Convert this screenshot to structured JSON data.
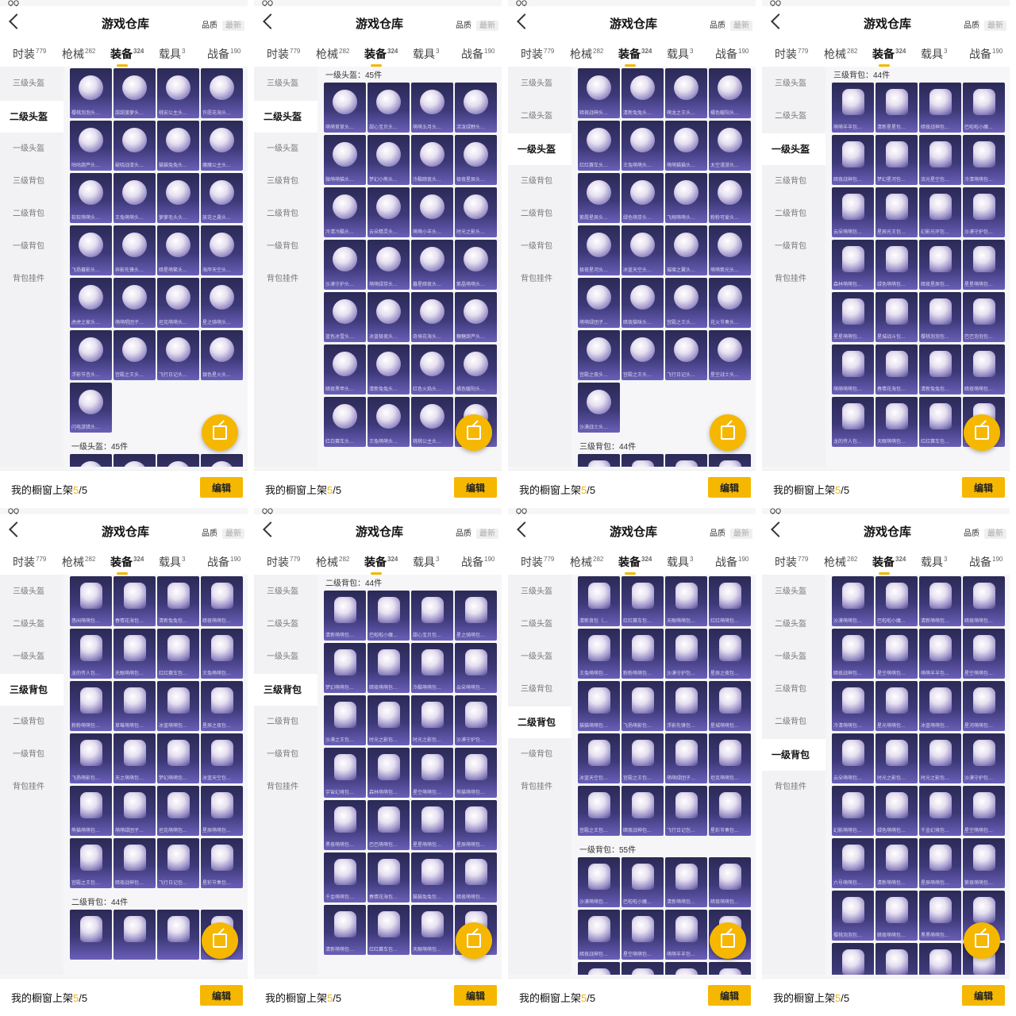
{
  "app": {
    "status": "QQ",
    "title": "游戏仓库",
    "sort_quality": "品质",
    "sort_newest": "最新"
  },
  "tabs": [
    {
      "label": "时装",
      "count": "779"
    },
    {
      "label": "枪械",
      "count": "282"
    },
    {
      "label": "装备",
      "count": "324"
    },
    {
      "label": "载具",
      "count": "3"
    },
    {
      "label": "战备",
      "count": "190"
    }
  ],
  "active_tab": 2,
  "sidebar": [
    "三级头盔",
    "二级头盔",
    "一级头盔",
    "三级背包",
    "二级背包",
    "一级背包",
    "背包挂件"
  ],
  "footer": {
    "label": "我的橱窗上架",
    "count": "5",
    "total": "/5",
    "edit": "编辑"
  },
  "panels": [
    {
      "active_side": 1,
      "sections": [
        {
          "label": "",
          "kind": "helmet",
          "items": [
            "樱桃泡泡头…",
            "甜甜菠萝头…",
            "桃安公主头…",
            "许愿花海头…",
            "咕咕葫芦头…",
            "破晓战漆头…",
            "猫猫兔兔头…",
            "魔魔公主头…",
            "软软萌萌头…",
            "王兔萌萌头…",
            "萝萝毛头头…",
            "放花之晨头…",
            "飞扬暮影头…",
            "奔影先锋头…",
            "暗星萌繁头…",
            "海岸天空头…",
            "虎虎之家头…",
            "萌萌唱团子…",
            "坦克萌萌头…",
            "星之骑萌头…",
            "浮影节杏头…",
            "宫殿之王头…",
            "飞行日记头…",
            "银色星火头…",
            "闪电游猎头…"
          ]
        },
        {
          "label": "一级头盔：45件",
          "kind": "helmet",
          "items": [
            "",
            "",
            "",
            ""
          ]
        }
      ]
    },
    {
      "active_side": 1,
      "sections": [
        {
          "label": "一级头盔：45件",
          "kind": "helmet",
          "items": [
            "萌萌草草头…",
            "甜心宝贝头…",
            "萌萌五月头…",
            "活泼绿野头…",
            "微萌萌猫头…",
            "梦幻小熊头…",
            "冷酷暗夜头…",
            "极夜星辰头…",
            "冷清冷酷头…",
            "云朵精灵头…",
            "萌萌小羊头…",
            "时光之影头…",
            "沙漠守护头…",
            "萌萌绿芽头…",
            "暮星暗夜头…",
            "紫晶萌萌头…",
            "蓝色冰雪头…",
            "冰蓝极夜头…",
            "奇境花海头…",
            "糖糖葫芦头…",
            "暗夜黑甲头…",
            "清新兔兔头…",
            "红色火焰头…",
            "橘色暖阳头…",
            "红白赛车头…",
            "王兔萌萌头…",
            "桃桃公主头…",
            ""
          ]
        }
      ]
    },
    {
      "active_side": 2,
      "sections": [
        {
          "label": "",
          "kind": "helmet",
          "items": [
            "暗夜战神头…",
            "清新兔兔头…",
            "萌龙之王头…",
            "橘色暖阳头…",
            "红红赛车头…",
            "王兔萌萌头…",
            "萌萌猫猫头…",
            "太空漫游头…",
            "紫霞星辰头…",
            "绿色萌芽头…",
            "飞翔萌萌头…",
            "粉粉可爱头…",
            "极夜星河头…",
            "冰蓝天空头…",
            "璀璨之翼头…",
            "萌萌紫光头…",
            "萌萌绿团子…",
            "暗夜猫咪头…",
            "宫殿之王头…",
            "花火节奏头…",
            "宫殿之夜头…",
            "宫殿之王头…",
            "飞行日记头…",
            "星空战士头…",
            "沙漠战士头…"
          ]
        },
        {
          "label": "三级背包：44件",
          "kind": "pack",
          "items": [
            "",
            "",
            "",
            ""
          ]
        }
      ]
    },
    {
      "active_side": 2,
      "sections": [
        {
          "label": "三级背包：44件",
          "kind": "pack",
          "items": [
            "萌萌羊羊包…",
            "清新星星包…",
            "暗夜战神包…",
            "巴啦啦小魔…",
            "暗夜战神包…",
            "梦幻星河包…",
            "流光星空包…",
            "冷清萌萌包…",
            "云朵萌萌包…",
            "星辰光王包…",
            "幻影光环包…",
            "沙漠守护包…",
            "森林萌萌包…",
            "绿色萌萌包…",
            "暗夜星辰包…",
            "星星萌萌包…",
            "星星萌萌包…",
            "星城战斗包…",
            "樱桃泡泡包…",
            "巴巴泡泡包…",
            "萌萌萌萌包…",
            "春情花海包…",
            "清新兔兔包…",
            "暗夜萌萌包…",
            "龙的传人包…",
            "天眼萌萌包…",
            "红红赛车包…",
            "王兔萌萌包…"
          ]
        }
      ]
    },
    {
      "active_side": 3,
      "sections": [
        {
          "label": "",
          "kind": "pack",
          "items": [
            "悠闲萌萌包…",
            "春情花海包…",
            "清新兔兔包…",
            "暗夜萌萌包…",
            "龙的传人包…",
            "天眼萌萌包…",
            "红红赛车包…",
            "王兔萌萌包…",
            "粉粉萌萌包…",
            "草莓萌萌包…",
            "冰蓝萌萌包…",
            "星辰之夜包…",
            "飞扬萌影包…",
            "天之萌萌包…",
            "梦幻萌萌包…",
            "冰蓝天空包…",
            "熊猫萌萌包…",
            "萌萌绿团子…",
            "坦克萌萌包…",
            "星辰萌萌包…",
            "宫殿之王包…",
            "暗夜战神包…",
            "飞行日记包…",
            "星彩节奏包…"
          ]
        },
        {
          "label": "二级背包：44件",
          "kind": "pack",
          "items": [
            "",
            "",
            "",
            ""
          ]
        }
      ]
    },
    {
      "active_side": 3,
      "sections": [
        {
          "label": "二级背包：44件",
          "kind": "pack",
          "items": [
            "清新萌萌包…",
            "巴啦啦小魔…",
            "甜心宝贝包…",
            "星之骑萌包…",
            "梦幻萌萌包…",
            "暗夜萌萌包…",
            "冷酷萌萌包…",
            "云朵萌萌包…",
            "沙漠之王包…",
            "时光之影包…",
            "时光之影包…",
            "沙漠守护包…",
            "宇宙幻境包…",
            "森林萌萌包…",
            "星空萌萌包…",
            "熊猫萌萌包…",
            "黑夜萌萌包…",
            "巴巴萌萌包…",
            "星星萌萌包…",
            "星辰萌萌包…",
            "千金萌萌包…",
            "春情花海包…",
            "猫猫兔兔包…",
            "暗夜萌萌包…",
            "清新萌萌包…",
            "红红赛车包…",
            "天眼萌萌包…",
            "红红萌萌包…"
          ]
        }
      ]
    },
    {
      "active_side": 4,
      "sections": [
        {
          "label": "",
          "kind": "pack",
          "items": [
            "清新背包（…",
            "红红赛车包…",
            "天眼萌萌包…",
            "红红萌萌包…",
            "王兔萌萌包…",
            "粉粉萌萌包…",
            "沙漠守护包…",
            "星辰之夜包…",
            "猫猫萌萌包…",
            "飞扬萌影包…",
            "浮影先锋包…",
            "星城萌萌包…",
            "冰蓝天空包…",
            "宫殿之王包…",
            "萌萌绿团子…",
            "坦克萌萌包…",
            "宫殿之王包…",
            "暗夜战神包…",
            "飞行日记包…",
            "星彩节奏包…"
          ]
        },
        {
          "label": "一级背包：55件",
          "kind": "pack",
          "items": [
            "沙漠萌萌包…",
            "巴啦啦小魔…",
            "清新萌萌包…",
            "暗夜萌萌包…",
            "暗夜战神包…",
            "星空萌萌包…",
            "萌萌羊羊包…",
            "",
            "",
            "",
            "",
            ""
          ]
        }
      ]
    },
    {
      "active_side": 5,
      "sections": [
        {
          "label": "",
          "kind": "pack",
          "items": [
            "沙漠萌萌包…",
            "巴啦啦小魔…",
            "清新萌萌包…",
            "暗夜萌萌包…",
            "暗夜战神包…",
            "星空萌萌包…",
            "萌萌羊羊包…",
            "星空萌萌包…",
            "冷清萌萌包…",
            "星光萌萌包…",
            "冰蓝萌萌包…",
            "星河萌萌包…",
            "云朵萌萌包…",
            "时光之影包…",
            "时光之影包…",
            "沙漠守护包…",
            "幻影萌萌包…",
            "绿色萌萌包…",
            "千金幻境包…",
            "星空萌萌包…",
            "六号萌萌包…",
            "清新萌萌包…",
            "星辰萌萌包…",
            "紫夜萌萌包…",
            "樱桃泡泡包…",
            "暗夜萌萌包…",
            "黑黑萌萌包…",
            "巴巴萌萌包…",
            "",
            "",
            "",
            ""
          ]
        }
      ]
    }
  ]
}
